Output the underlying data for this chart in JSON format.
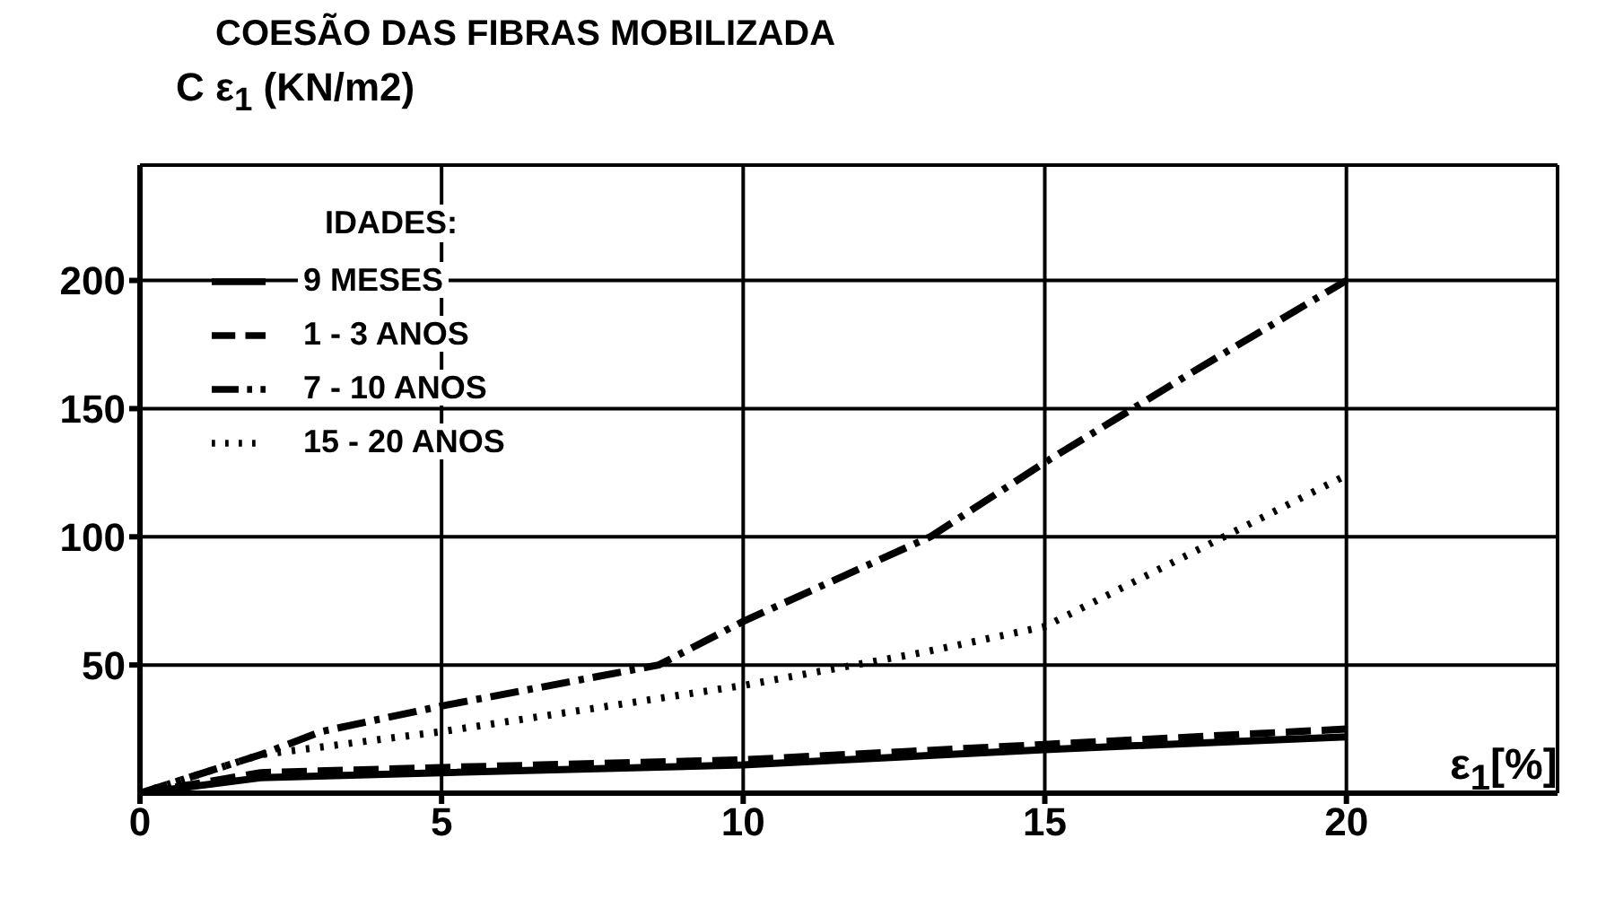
{
  "chart_data": {
    "type": "line",
    "title": "COESÃO DAS FIBRAS MOBILIZADA",
    "ylabel": "C ε$_{1}$ (KN/m2)",
    "xlabel": "ε$_{1}$[%]",
    "legend_title": "IDADES:",
    "legend": "top left",
    "grid": true,
    "marker": "none",
    "xlim": [
      0,
      23.5
    ],
    "xticks": [
      0,
      5,
      10,
      15,
      20
    ],
    "ylim": [
      0,
      245
    ],
    "yticks": [
      50,
      100,
      150,
      200
    ],
    "series": [
      {
        "name": "9 MESES",
        "color": "#000000",
        "line_style": "solid",
        "x": [
          0,
          2,
          5,
          10,
          15,
          20
        ],
        "values": [
          0,
          6,
          8,
          11,
          17,
          22
        ]
      },
      {
        "name": "1 - 3 ANOS",
        "color": "#000000",
        "line_style": "dashed",
        "x": [
          0,
          2,
          5,
          10,
          15,
          20
        ],
        "values": [
          0,
          8,
          10,
          13,
          19,
          25
        ]
      },
      {
        "name": "7 - 10 ANOS",
        "color": "#000000",
        "line_style": "dashdot",
        "x": [
          0,
          2,
          3,
          5,
          8.6,
          10,
          13.1,
          15,
          17.5,
          20
        ],
        "values": [
          0,
          15,
          24,
          34,
          50,
          67,
          100,
          129,
          165,
          200
        ]
      },
      {
        "name": "15 - 20 ANOS",
        "color": "#000000",
        "line_style": "dotted",
        "x": [
          0,
          2,
          5,
          10,
          13,
          15,
          17.8,
          20
        ],
        "values": [
          0,
          15,
          24,
          42,
          55,
          65,
          98,
          124
        ]
      }
    ]
  }
}
